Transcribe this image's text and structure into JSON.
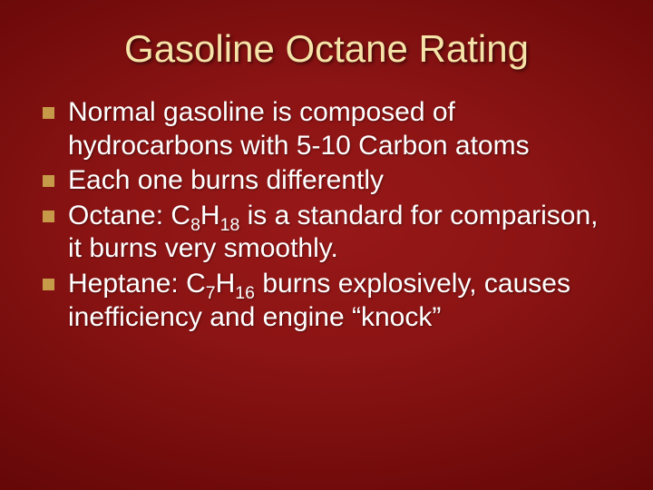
{
  "slide": {
    "title": "Gasoline Octane Rating",
    "title_color": "#f5e3a8",
    "text_color": "#ffffff",
    "bullet_marker_color": "#c79a4a",
    "background_gradient": [
      "#981818",
      "#6e0a0a",
      "#520404"
    ],
    "title_fontsize": 42,
    "body_fontsize": 30,
    "bullets": [
      {
        "pre": "Normal gasoline is composed of hydrocarbons with 5-10 Carbon atoms",
        "formula_base": "",
        "formula_sub1": "",
        "formula_mid": "",
        "formula_sub2": "",
        "post": ""
      },
      {
        "pre": "Each one burns differently",
        "formula_base": "",
        "formula_sub1": "",
        "formula_mid": "",
        "formula_sub2": "",
        "post": ""
      },
      {
        "pre": "Octane: C",
        "formula_sub1": "8",
        "formula_mid": "H",
        "formula_sub2": "18",
        "post": " is a standard for comparison, it burns very smoothly."
      },
      {
        "pre": "Heptane: C",
        "formula_sub1": "7",
        "formula_mid": "H",
        "formula_sub2": "16",
        "post": " burns explosively, causes inefficiency and engine “knock”"
      }
    ]
  }
}
